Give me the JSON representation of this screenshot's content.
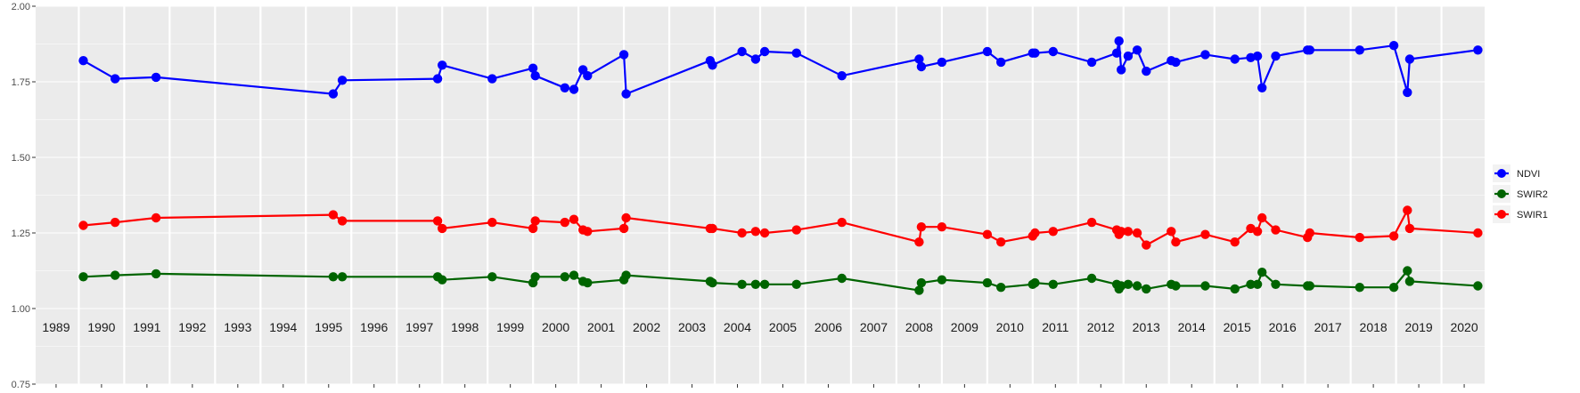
{
  "chart_data": {
    "type": "line",
    "title": "",
    "xlabel": "",
    "ylabel": "",
    "xlim": [
      1988.55,
      2020.45
    ],
    "ylim": [
      0.75,
      2.0
    ],
    "y_ticks": [
      "0.75",
      "1.00",
      "1.25",
      "1.50",
      "1.75",
      "2.00"
    ],
    "x_tick_labels": [
      "1989",
      "1990",
      "1991",
      "1992",
      "1993",
      "1994",
      "1995",
      "1996",
      "1997",
      "1998",
      "1999",
      "2000",
      "2001",
      "2002",
      "2003",
      "2004",
      "2005",
      "2006",
      "2007",
      "2008",
      "2009",
      "2010",
      "2011",
      "2012",
      "2013",
      "2014",
      "2015",
      "2016",
      "2017",
      "2018",
      "2019",
      "2020"
    ],
    "grid": true,
    "legend_position": "right",
    "series": [
      {
        "name": "NDVI",
        "color": "#0000ff",
        "points": [
          [
            1989.6,
            1.82
          ],
          [
            1990.3,
            1.76
          ],
          [
            1991.2,
            1.765
          ],
          [
            1995.1,
            1.71
          ],
          [
            1995.3,
            1.755
          ],
          [
            1997.4,
            1.76
          ],
          [
            1997.5,
            1.805
          ],
          [
            1998.6,
            1.76
          ],
          [
            1999.5,
            1.795
          ],
          [
            1999.55,
            1.77
          ],
          [
            2000.2,
            1.73
          ],
          [
            2000.4,
            1.725
          ],
          [
            2000.6,
            1.79
          ],
          [
            2000.7,
            1.77
          ],
          [
            2001.5,
            1.84
          ],
          [
            2001.55,
            1.71
          ],
          [
            2003.4,
            1.82
          ],
          [
            2003.45,
            1.805
          ],
          [
            2004.1,
            1.85
          ],
          [
            2004.4,
            1.825
          ],
          [
            2004.6,
            1.85
          ],
          [
            2005.3,
            1.845
          ],
          [
            2006.3,
            1.77
          ],
          [
            2008.0,
            1.825
          ],
          [
            2008.05,
            1.8
          ],
          [
            2008.5,
            1.815
          ],
          [
            2009.5,
            1.85
          ],
          [
            2009.8,
            1.815
          ],
          [
            2010.5,
            1.845
          ],
          [
            2010.55,
            1.845
          ],
          [
            2010.95,
            1.85
          ],
          [
            2011.8,
            1.815
          ],
          [
            2012.35,
            1.845
          ],
          [
            2012.4,
            1.885
          ],
          [
            2012.45,
            1.79
          ],
          [
            2012.6,
            1.835
          ],
          [
            2012.8,
            1.855
          ],
          [
            2013.0,
            1.785
          ],
          [
            2013.55,
            1.82
          ],
          [
            2013.65,
            1.815
          ],
          [
            2014.3,
            1.84
          ],
          [
            2014.95,
            1.825
          ],
          [
            2015.3,
            1.83
          ],
          [
            2015.45,
            1.835
          ],
          [
            2015.55,
            1.73
          ],
          [
            2015.85,
            1.835
          ],
          [
            2016.55,
            1.855
          ],
          [
            2016.6,
            1.855
          ],
          [
            2017.7,
            1.855
          ],
          [
            2018.45,
            1.87
          ],
          [
            2018.75,
            1.715
          ],
          [
            2018.8,
            1.825
          ],
          [
            2020.3,
            1.855
          ]
        ]
      },
      {
        "name": "SWIR2",
        "color": "#006400",
        "points": [
          [
            1989.6,
            1.105
          ],
          [
            1990.3,
            1.11
          ],
          [
            1991.2,
            1.115
          ],
          [
            1995.1,
            1.105
          ],
          [
            1995.3,
            1.105
          ],
          [
            1997.4,
            1.105
          ],
          [
            1997.5,
            1.095
          ],
          [
            1998.6,
            1.105
          ],
          [
            1999.5,
            1.085
          ],
          [
            1999.55,
            1.105
          ],
          [
            2000.2,
            1.105
          ],
          [
            2000.4,
            1.11
          ],
          [
            2000.6,
            1.09
          ],
          [
            2000.7,
            1.085
          ],
          [
            2001.5,
            1.095
          ],
          [
            2001.55,
            1.11
          ],
          [
            2003.4,
            1.09
          ],
          [
            2003.45,
            1.085
          ],
          [
            2004.1,
            1.08
          ],
          [
            2004.4,
            1.08
          ],
          [
            2004.6,
            1.08
          ],
          [
            2005.3,
            1.08
          ],
          [
            2006.3,
            1.1
          ],
          [
            2008.0,
            1.06
          ],
          [
            2008.05,
            1.085
          ],
          [
            2008.5,
            1.095
          ],
          [
            2009.5,
            1.085
          ],
          [
            2009.8,
            1.07
          ],
          [
            2010.5,
            1.08
          ],
          [
            2010.55,
            1.085
          ],
          [
            2010.95,
            1.08
          ],
          [
            2011.8,
            1.1
          ],
          [
            2012.35,
            1.08
          ],
          [
            2012.4,
            1.065
          ],
          [
            2012.45,
            1.075
          ],
          [
            2012.6,
            1.08
          ],
          [
            2012.8,
            1.075
          ],
          [
            2013.0,
            1.065
          ],
          [
            2013.55,
            1.08
          ],
          [
            2013.65,
            1.075
          ],
          [
            2014.3,
            1.075
          ],
          [
            2014.95,
            1.065
          ],
          [
            2015.3,
            1.08
          ],
          [
            2015.45,
            1.08
          ],
          [
            2015.55,
            1.12
          ],
          [
            2015.85,
            1.08
          ],
          [
            2016.55,
            1.075
          ],
          [
            2016.6,
            1.075
          ],
          [
            2017.7,
            1.07
          ],
          [
            2018.45,
            1.07
          ],
          [
            2018.75,
            1.125
          ],
          [
            2018.8,
            1.09
          ],
          [
            2020.3,
            1.075
          ]
        ]
      },
      {
        "name": "SWIR1",
        "color": "#ff0000",
        "points": [
          [
            1989.6,
            1.275
          ],
          [
            1990.3,
            1.285
          ],
          [
            1991.2,
            1.3
          ],
          [
            1995.1,
            1.31
          ],
          [
            1995.3,
            1.29
          ],
          [
            1997.4,
            1.29
          ],
          [
            1997.5,
            1.265
          ],
          [
            1998.6,
            1.285
          ],
          [
            1999.5,
            1.265
          ],
          [
            1999.55,
            1.29
          ],
          [
            2000.2,
            1.285
          ],
          [
            2000.4,
            1.295
          ],
          [
            2000.6,
            1.26
          ],
          [
            2000.7,
            1.255
          ],
          [
            2001.5,
            1.265
          ],
          [
            2001.55,
            1.3
          ],
          [
            2003.4,
            1.265
          ],
          [
            2003.45,
            1.265
          ],
          [
            2004.1,
            1.25
          ],
          [
            2004.4,
            1.255
          ],
          [
            2004.6,
            1.25
          ],
          [
            2005.3,
            1.26
          ],
          [
            2006.3,
            1.285
          ],
          [
            2008.0,
            1.22
          ],
          [
            2008.05,
            1.27
          ],
          [
            2008.5,
            1.27
          ],
          [
            2009.5,
            1.245
          ],
          [
            2009.8,
            1.22
          ],
          [
            2010.5,
            1.24
          ],
          [
            2010.55,
            1.25
          ],
          [
            2010.95,
            1.255
          ],
          [
            2011.8,
            1.285
          ],
          [
            2012.35,
            1.26
          ],
          [
            2012.4,
            1.245
          ],
          [
            2012.45,
            1.255
          ],
          [
            2012.6,
            1.255
          ],
          [
            2012.8,
            1.25
          ],
          [
            2013.0,
            1.21
          ],
          [
            2013.55,
            1.255
          ],
          [
            2013.65,
            1.22
          ],
          [
            2014.3,
            1.245
          ],
          [
            2014.95,
            1.22
          ],
          [
            2015.3,
            1.265
          ],
          [
            2015.45,
            1.255
          ],
          [
            2015.55,
            1.3
          ],
          [
            2015.85,
            1.26
          ],
          [
            2016.55,
            1.235
          ],
          [
            2016.6,
            1.25
          ],
          [
            2017.7,
            1.235
          ],
          [
            2018.45,
            1.24
          ],
          [
            2018.75,
            1.325
          ],
          [
            2018.8,
            1.265
          ],
          [
            2020.3,
            1.25
          ]
        ]
      }
    ]
  }
}
